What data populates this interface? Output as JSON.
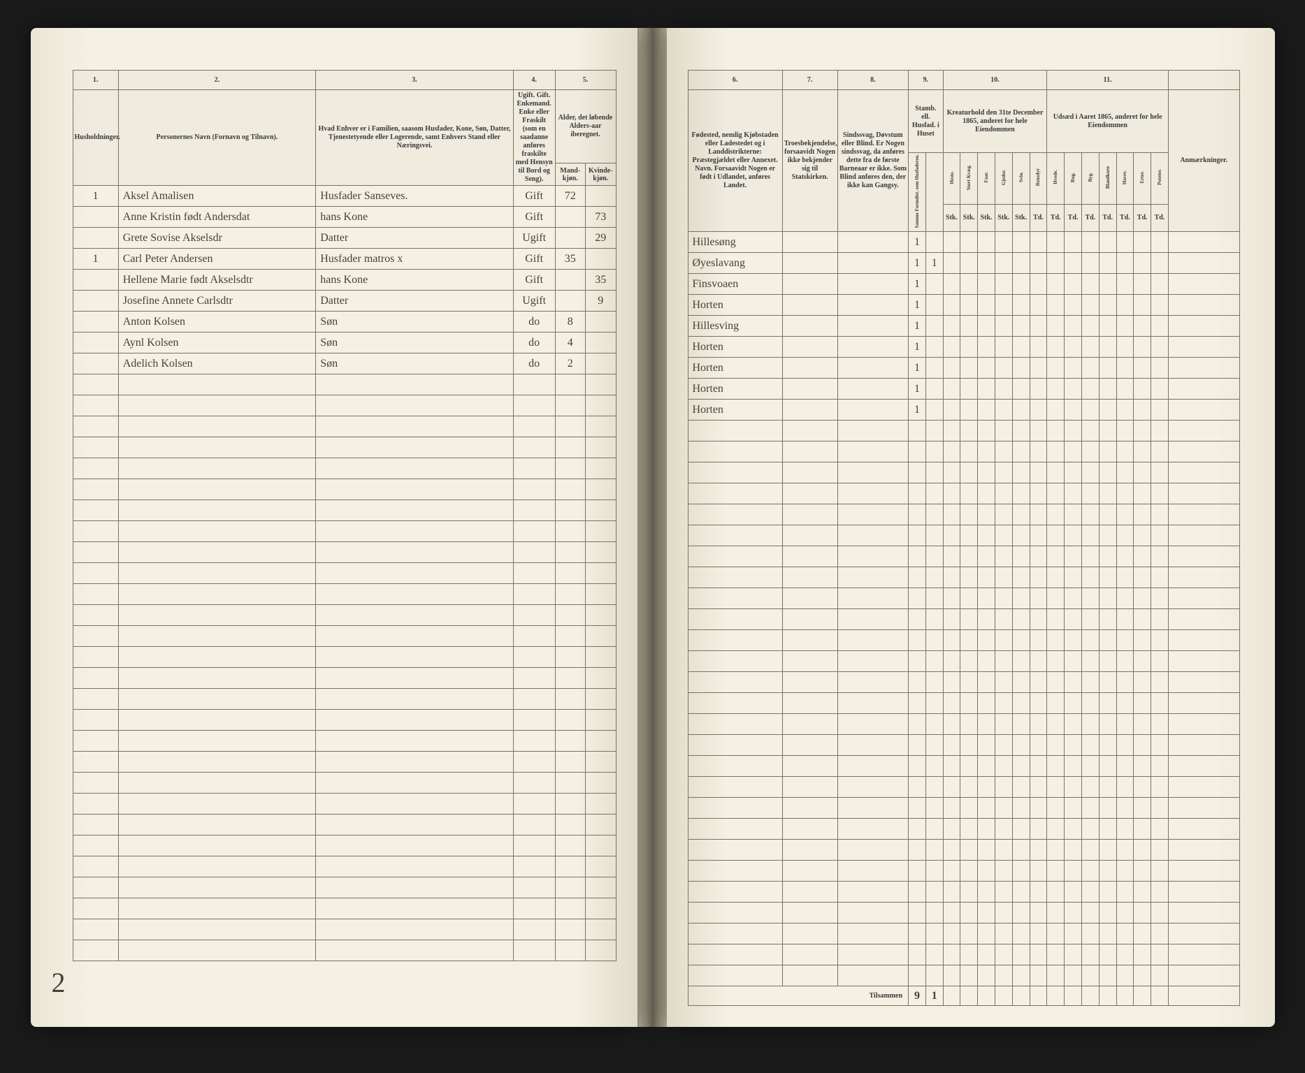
{
  "page_bg": "#f4f0e4",
  "ink_color": "#4a3f35",
  "rule_color": "#7a7260",
  "left": {
    "col_numbers": [
      "1.",
      "2.",
      "3.",
      "4.",
      "5."
    ],
    "headers": {
      "c1": "Husholdninger.",
      "c2": "Personernes Navn (Fornavn og Tilnavn).",
      "c3": "Hvad Enhver er i Familien, saasom Husfader, Kone, Søn, Datter, Tjenestetyende eller Logerende, samt Enhvers Stand eller Næringsvei.",
      "c4": "Ugift. Gift. Enkemand. Enke eller Fraskilt (som en saadanne anføres fraskilte med Hensyn til Bord og Seng).",
      "c5": "Alder, det løbende Alders-aar iberegnet.",
      "c4a": "Mand-kjøn.",
      "c4b": "Kvinde-kjøn."
    },
    "rows": [
      {
        "hh": "1",
        "name": "Aksel Amalisen",
        "role": "Husfader Sanseves.",
        "stat": "Gift",
        "age_m": "72",
        "age_f": ""
      },
      {
        "hh": "",
        "name": "Anne Kristin født Andersdat",
        "role": "hans Kone",
        "stat": "Gift",
        "age_m": "",
        "age_f": "73"
      },
      {
        "hh": "",
        "name": "Grete Sovise Akselsdr",
        "role": "Datter",
        "stat": "Ugift",
        "age_m": "",
        "age_f": "29"
      },
      {
        "hh": "1",
        "name": "Carl Peter Andersen",
        "role": "Husfader matros x",
        "stat": "Gift",
        "age_m": "35",
        "age_f": ""
      },
      {
        "hh": "",
        "name": "Hellene Marie født Akselsdtr",
        "role": "hans Kone",
        "stat": "Gift",
        "age_m": "",
        "age_f": "35"
      },
      {
        "hh": "",
        "name": "Josefine Annete Carlsdtr",
        "role": "Datter",
        "stat": "Ugift",
        "age_m": "",
        "age_f": "9"
      },
      {
        "hh": "",
        "name": "Anton Kolsen",
        "role": "Søn",
        "stat": "do",
        "age_m": "8",
        "age_f": ""
      },
      {
        "hh": "",
        "name": "Aynl Kolsen",
        "role": "Søn",
        "stat": "do",
        "age_m": "4",
        "age_f": ""
      },
      {
        "hh": "",
        "name": "Adelich Kolsen",
        "role": "Søn",
        "stat": "do",
        "age_m": "2",
        "age_f": ""
      }
    ],
    "empty_rows": 28,
    "corner_mark": "2"
  },
  "right": {
    "col_numbers": [
      "6.",
      "7.",
      "8.",
      "9.",
      "10.",
      "11."
    ],
    "headers": {
      "c6": "Fødested, nemlig Kjøbstaden eller Ladestedet og i Landdistrikterne: Præstegjældet eller Annexet. Navn. Forsaavidt Nogen er født i Udlandet, anføres Landet.",
      "c7": "Troesbekjendelse, forsaavidt Nogen ikke bekjender sig til Statskirken.",
      "c8": "Sindssvag, Døvstum eller Blind. Er Nogen sindssvag, da anføres dette fra de første Barneaar er ikke. Som Blind anføres den, der ikke kan Gangsy.",
      "c9_top": "Stamb. ell. Husfad. i Huset",
      "c9a": "Samme Formdist. som Husfaderen.",
      "c10_top": "Kreaturhold den 31te December 1865, anderet for hele Eiendommen",
      "c11_top": "Udsæd i Aaret 1865, anderet for hele Eiendommen",
      "c10_cols": [
        "Heste.",
        "Stort Kvæg.",
        "Faar.",
        "Gjeder.",
        "Svin.",
        "Rensdyr"
      ],
      "c11_cols": [
        "Hvede.",
        "Rug.",
        "Byg.",
        "Blandkorn",
        "Havre.",
        "Erter.",
        "Poteter."
      ],
      "anm": "Anmærkninger.",
      "unit_row": [
        "Stk.",
        "Stk.",
        "Stk.",
        "Stk.",
        "Stk.",
        "Td.",
        "Td.",
        "Td.",
        "Td.",
        "Td.",
        "Td.",
        "Td.",
        "Td."
      ]
    },
    "rows": [
      {
        "birthplace": "Hillesøng",
        "c9a": "1",
        "c9b": ""
      },
      {
        "birthplace": "Øyeslavang",
        "c9a": "1",
        "c9b": "1"
      },
      {
        "birthplace": "Finsvoaen",
        "c9a": "1",
        "c9b": ""
      },
      {
        "birthplace": "Horten",
        "c9a": "1",
        "c9b": ""
      },
      {
        "birthplace": "Hillesving",
        "c9a": "1",
        "c9b": ""
      },
      {
        "birthplace": "Horten",
        "c9a": "1",
        "c9b": ""
      },
      {
        "birthplace": "Horten",
        "c9a": "1",
        "c9b": ""
      },
      {
        "birthplace": "Horten",
        "c9a": "1",
        "c9b": ""
      },
      {
        "birthplace": "Horten",
        "c9a": "1",
        "c9b": ""
      }
    ],
    "empty_rows": 27,
    "totals": {
      "label": "Tilsammen",
      "c9a": "9",
      "c9b": "1"
    }
  }
}
